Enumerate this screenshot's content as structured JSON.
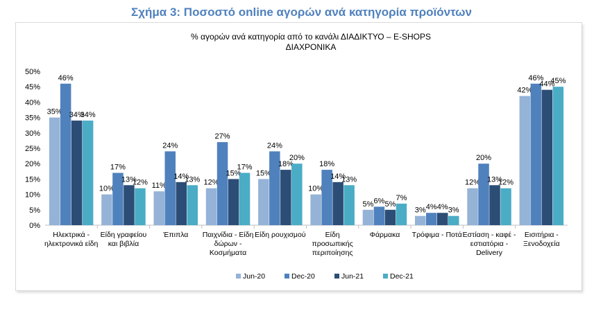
{
  "figure_title": "Σχήμα 3: Ποσοστό online αγορών ανά κατηγορία προϊόντων",
  "chart_data": {
    "type": "bar",
    "title_lines": [
      "% αγορών ανά κατηγορία από το κανάλι ΔΙΑΔΙΚΤΥΟ – E-SHOPS",
      "ΔΙΑΧΡΟΝΙΚΑ"
    ],
    "categories": [
      [
        "Ηλεκτρικά -",
        "ηλεκτρονικά είδη"
      ],
      [
        "Είδη γραφείου",
        "και βιβλία"
      ],
      [
        "Έπιπλα"
      ],
      [
        "Παιχνίδια - Είδη",
        "δώρων -",
        "Κοσμήματα"
      ],
      [
        "Είδη ρουχισμού"
      ],
      [
        "Είδη",
        "προσωπικής",
        "περιποίησης"
      ],
      [
        "Φάρμακα"
      ],
      [
        "Τρόφιμα - Ποτά"
      ],
      [
        "Εστίαση - καφέ -",
        "εστιατόρια -",
        "Delivery"
      ],
      [
        "Εισιτήρια -",
        "Ξενοδοχεία"
      ]
    ],
    "series": [
      {
        "name": "Jun-20",
        "color": "#95b3d7",
        "values": [
          35,
          10,
          11,
          12,
          15,
          10,
          5,
          3,
          12,
          42
        ]
      },
      {
        "name": "Dec-20",
        "color": "#4f81bd",
        "values": [
          46,
          17,
          24,
          27,
          24,
          18,
          6,
          4,
          20,
          46
        ]
      },
      {
        "name": "Jun-21",
        "color": "#2c4d75",
        "values": [
          34,
          13,
          14,
          15,
          18,
          14,
          5,
          4,
          13,
          44
        ]
      },
      {
        "name": "Dec-21",
        "color": "#4bacc6",
        "values": [
          34,
          12,
          13,
          17,
          20,
          13,
          7,
          3,
          12,
          45
        ]
      }
    ],
    "ylim": [
      0,
      50
    ],
    "yticks": [
      "0%",
      "5%",
      "10%",
      "15%",
      "20%",
      "25%",
      "30%",
      "35%",
      "40%",
      "45%",
      "50%"
    ],
    "legend_position": "bottom"
  }
}
